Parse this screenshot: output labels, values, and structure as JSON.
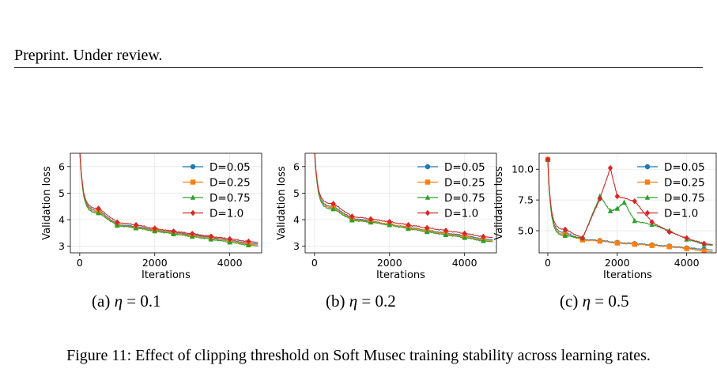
{
  "header": {
    "text": "Preprint. Under review."
  },
  "subfigures": [
    {
      "prefix": "(a) ",
      "var": "η",
      "suffix": " = 0.1"
    },
    {
      "prefix": "(b) ",
      "var": "η",
      "suffix": " = 0.2"
    },
    {
      "prefix": "(c) ",
      "var": "η",
      "suffix": " = 0.5"
    }
  ],
  "caption": "Figure 11: Effect of clipping threshold on Soft Musec training stability across learning rates.",
  "colors": {
    "D=0.05": "#1f77b4",
    "D=0.25": "#ff7f0e",
    "D=0.75": "#2ca02c",
    "D=1.0": "#d62728"
  },
  "chart_data": [
    {
      "type": "line",
      "xlabel": "Iterations",
      "ylabel": "Validation loss",
      "xlim": [
        -250,
        4850
      ],
      "ylim": [
        2.75,
        6.5
      ],
      "xticks": [
        0,
        2000,
        4000
      ],
      "yticks": [
        3,
        4,
        5,
        6
      ],
      "grid": true,
      "legend": "upper right",
      "series": [
        {
          "name": "D=0.05",
          "marker": "circle",
          "x": [
            0,
            500,
            1000,
            1500,
            2000,
            2500,
            3000,
            3500,
            4000,
            4500
          ],
          "y": [
            6.6,
            4.35,
            3.82,
            3.74,
            3.62,
            3.52,
            3.43,
            3.33,
            3.22,
            3.12
          ]
        },
        {
          "name": "D=0.25",
          "marker": "square",
          "x": [
            0,
            500,
            1000,
            1500,
            2000,
            2500,
            3000,
            3500,
            4000,
            4500
          ],
          "y": [
            6.6,
            4.3,
            3.8,
            3.7,
            3.6,
            3.5,
            3.4,
            3.3,
            3.2,
            3.08
          ]
        },
        {
          "name": "D=0.75",
          "marker": "triangle",
          "x": [
            0,
            500,
            1000,
            1500,
            2000,
            2500,
            3000,
            3500,
            4000,
            4500
          ],
          "y": [
            6.6,
            4.25,
            3.78,
            3.68,
            3.57,
            3.46,
            3.36,
            3.26,
            3.15,
            3.04
          ]
        },
        {
          "name": "D=1.0",
          "marker": "diamond",
          "x": [
            0,
            500,
            1000,
            1500,
            2000,
            2500,
            3000,
            3500,
            4000,
            4500
          ],
          "y": [
            6.6,
            4.42,
            3.9,
            3.8,
            3.67,
            3.56,
            3.47,
            3.37,
            3.27,
            3.18
          ]
        }
      ]
    },
    {
      "type": "line",
      "xlabel": "Iterations",
      "ylabel": "Validation loss",
      "xlim": [
        -250,
        4850
      ],
      "ylim": [
        2.75,
        6.5
      ],
      "xticks": [
        0,
        2000,
        4000
      ],
      "yticks": [
        3,
        4,
        5,
        6
      ],
      "grid": true,
      "legend": "upper right",
      "series": [
        {
          "name": "D=0.05",
          "marker": "circle",
          "x": [
            0,
            500,
            1000,
            1500,
            2000,
            2500,
            3000,
            3500,
            4000,
            4500
          ],
          "y": [
            6.6,
            4.5,
            4.05,
            3.95,
            3.82,
            3.72,
            3.6,
            3.5,
            3.4,
            3.28
          ]
        },
        {
          "name": "D=0.25",
          "marker": "square",
          "x": [
            0,
            500,
            1000,
            1500,
            2000,
            2500,
            3000,
            3500,
            4000,
            4500
          ],
          "y": [
            6.6,
            4.45,
            4.02,
            3.92,
            3.84,
            3.7,
            3.58,
            3.47,
            3.36,
            3.24
          ]
        },
        {
          "name": "D=0.75",
          "marker": "triangle",
          "x": [
            0,
            500,
            1000,
            1500,
            2000,
            2500,
            3000,
            3500,
            4000,
            4500
          ],
          "y": [
            6.6,
            4.4,
            3.98,
            3.9,
            3.8,
            3.66,
            3.54,
            3.43,
            3.32,
            3.2
          ]
        },
        {
          "name": "D=1.0",
          "marker": "diamond",
          "x": [
            0,
            500,
            1000,
            1500,
            2000,
            2500,
            3000,
            3500,
            4000,
            4500
          ],
          "y": [
            6.6,
            4.6,
            4.12,
            4.02,
            3.92,
            3.8,
            3.69,
            3.59,
            3.48,
            3.36
          ]
        }
      ]
    },
    {
      "type": "line",
      "xlabel": "Iterations",
      "ylabel": "Validation loss",
      "xlim": [
        -250,
        4850
      ],
      "ylim": [
        3.2,
        11.3
      ],
      "xticks": [
        0,
        2000,
        4000
      ],
      "yticks": [
        5.0,
        7.5,
        10.0
      ],
      "grid": true,
      "legend": "upper right",
      "series": [
        {
          "name": "D=0.05",
          "marker": "circle",
          "x": [
            0,
            500,
            1000,
            1500,
            2000,
            2500,
            3000,
            3500,
            4000,
            4500
          ],
          "y": [
            10.8,
            4.85,
            4.3,
            4.2,
            4.05,
            3.95,
            3.85,
            3.75,
            3.6,
            3.5
          ]
        },
        {
          "name": "D=0.25",
          "marker": "square",
          "x": [
            0,
            500,
            1000,
            1500,
            2000,
            2500,
            3000,
            3500,
            4000,
            4500
          ],
          "y": [
            10.8,
            4.7,
            4.25,
            4.15,
            4.0,
            3.9,
            3.8,
            3.7,
            3.55,
            3.35
          ]
        },
        {
          "name": "D=0.75",
          "marker": "triangle",
          "x": [
            0,
            500,
            1000,
            1500,
            1800,
            2000,
            2200,
            2500,
            3000,
            3500,
            4000,
            4500
          ],
          "y": [
            10.8,
            4.6,
            4.4,
            7.8,
            6.6,
            6.8,
            7.3,
            5.8,
            5.5,
            5.0,
            4.3,
            3.9
          ]
        },
        {
          "name": "D=1.0",
          "marker": "diamond",
          "x": [
            0,
            500,
            1000,
            1500,
            1800,
            2000,
            2500,
            3000,
            3500,
            4000,
            4500
          ],
          "y": [
            10.8,
            5.1,
            4.4,
            7.6,
            10.1,
            7.8,
            7.4,
            5.7,
            4.9,
            4.4,
            3.95
          ]
        }
      ]
    }
  ]
}
